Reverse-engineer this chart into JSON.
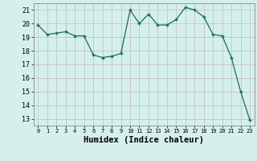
{
  "x": [
    0,
    1,
    2,
    3,
    4,
    5,
    6,
    7,
    8,
    9,
    10,
    11,
    12,
    13,
    14,
    15,
    16,
    17,
    18,
    19,
    20,
    21,
    22,
    23
  ],
  "y": [
    19.9,
    19.2,
    19.3,
    19.4,
    19.1,
    19.1,
    17.7,
    17.5,
    17.6,
    17.8,
    21.0,
    20.0,
    20.7,
    19.9,
    19.9,
    20.3,
    21.2,
    21.0,
    20.5,
    19.2,
    19.1,
    17.5,
    15.0,
    12.9
  ],
  "xlabel": "Humidex (Indice chaleur)",
  "ylabel_ticks": [
    13,
    14,
    15,
    16,
    17,
    18,
    19,
    20,
    21
  ],
  "ylim": [
    12.5,
    21.5
  ],
  "xlim": [
    -0.5,
    23.5
  ],
  "bg_color": "#d5f0ec",
  "grid_color": "#c0b8c0",
  "line_color": "#1a6b5a",
  "marker_color": "#1a6b5a",
  "xlabel_fontsize": 7.5
}
